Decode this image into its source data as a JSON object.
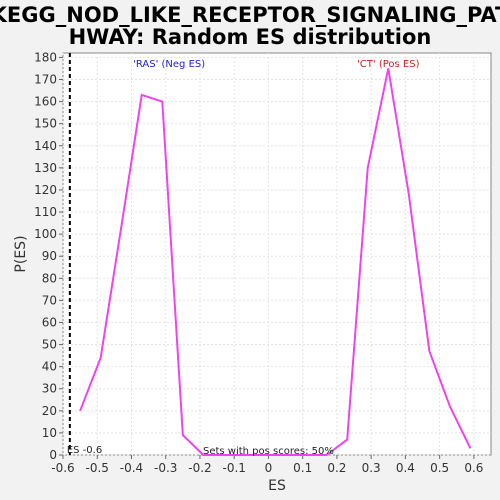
{
  "chart_data": {
    "type": "line",
    "title_lines": [
      "KEGG_NOD_LIKE_RECEPTOR_SIGNALING_PAT",
      "HWAY: Random ES distribution"
    ],
    "xlabel": "ES",
    "ylabel": "P(ES)",
    "xlim": [
      -0.6,
      0.65
    ],
    "ylim": [
      0,
      182
    ],
    "xticks": [
      -0.6,
      -0.5,
      -0.4,
      -0.3,
      -0.2,
      -0.1,
      0.0,
      0.1,
      0.2,
      0.3,
      0.4,
      0.5,
      0.6
    ],
    "yticks": [
      0,
      10,
      20,
      30,
      40,
      50,
      60,
      70,
      80,
      90,
      100,
      110,
      120,
      130,
      140,
      150,
      160,
      170,
      180
    ],
    "grid": true,
    "series": [
      {
        "color": "#ee44ee",
        "x": [
          -0.55,
          -0.49,
          -0.43,
          -0.37,
          -0.31,
          -0.25,
          -0.19,
          -0.13,
          -0.07,
          -0.01,
          0.05,
          0.11,
          0.17,
          0.23,
          0.29,
          0.35,
          0.41,
          0.47,
          0.53,
          0.59
        ],
        "y": [
          20,
          44,
          103,
          163,
          160,
          9,
          0,
          0,
          0,
          0,
          0,
          0,
          0,
          7,
          130,
          175,
          118,
          47,
          22,
          3
        ]
      }
    ],
    "es_line": {
      "x": -0.58,
      "label": "ES -0.6"
    },
    "annotations": {
      "neg": {
        "text": "'RAS' (Neg ES)",
        "color": "#2222cc",
        "x": -0.29
      },
      "pos": {
        "text": "'CT' (Pos ES)",
        "color": "#cc2222",
        "x": 0.35
      },
      "bottom": {
        "text": "Sets with pos scores: 50%",
        "x": 0.0
      }
    }
  }
}
